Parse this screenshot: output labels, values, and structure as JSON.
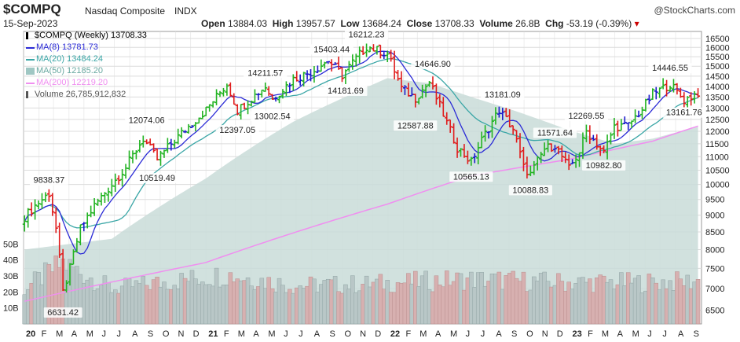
{
  "header": {
    "ticker": "$COMPQ",
    "name": "Nasdaq Composite",
    "exchange": "INDX",
    "date": "15-Sep-2023",
    "brand": "@StockCharts.com",
    "open_label": "Open",
    "open": "13884.03",
    "high_label": "High",
    "high": "13957.57",
    "low_label": "Low",
    "low": "13684.24",
    "close_label": "Close",
    "close": "13708.33",
    "volume_label": "Volume",
    "volume": "26.8B",
    "chg_label": "Chg",
    "chg": "-53.19 (-0.39%)"
  },
  "legend": [
    {
      "text": "$COMPQ (Weekly) 13708.33",
      "color": "#000000",
      "kind": "bar-icon"
    },
    {
      "text": "MA(8) 13781.73",
      "color": "#2b2bd6",
      "kind": "line"
    },
    {
      "text": "MA(20) 13484.24",
      "color": "#3aa6a6",
      "kind": "line"
    },
    {
      "text": "MA(50) 12185.20",
      "color": "#9fc7c3",
      "kind": "area"
    },
    {
      "text": "MA(200) 12219.20",
      "color": "#f08ef0",
      "kind": "line"
    },
    {
      "text": "Volume 26,785,912,832",
      "color": "#555555",
      "kind": "vol-icon"
    }
  ],
  "colors": {
    "up": "#22b322",
    "down": "#e01c1c",
    "neutral": "#1a1acc",
    "ma8": "#2b2bd6",
    "ma20": "#3aa6a6",
    "ma50_area": "#c9dcd8",
    "ma200": "#f08ef0",
    "grid": "#dcdcdc",
    "bg": "#ffffff",
    "upper_bg": "#f2f2f2"
  },
  "chart_data": {
    "type": "line",
    "title": "$COMPQ Nasdaq Composite INDX",
    "subtitle": "Weekly",
    "x_ticks": [
      "20",
      "F",
      "M",
      "A",
      "M",
      "J",
      "J",
      "A",
      "S",
      "O",
      "N",
      "D",
      "21",
      "F",
      "M",
      "A",
      "M",
      "J",
      "J",
      "A",
      "S",
      "O",
      "N",
      "D",
      "22",
      "F",
      "M",
      "A",
      "M",
      "J",
      "J",
      "A",
      "S",
      "O",
      "N",
      "D",
      "23",
      "F",
      "M",
      "A",
      "M",
      "J",
      "J",
      "A",
      "S"
    ],
    "x_tick_bold": [
      "20",
      "21",
      "22",
      "23"
    ],
    "y_ticks": [
      6500,
      7000,
      7500,
      8000,
      8500,
      9000,
      9500,
      10000,
      10500,
      11000,
      11500,
      12000,
      12500,
      13000,
      13500,
      14000,
      14500,
      15000,
      15500,
      16000,
      16500
    ],
    "y_scale": "log",
    "y_range": [
      6200,
      16900
    ],
    "volume_ticks": [
      "10B",
      "20B",
      "30B",
      "40B",
      "50B"
    ],
    "volume_range": [
      0,
      60
    ],
    "grid": true,
    "legend_position": "top-left",
    "annotations": [
      {
        "label": "9838.37",
        "date": "2020-02-21",
        "value": 9838.37
      },
      {
        "label": "6631.42",
        "date": "2020-03-20",
        "value": 6631.42
      },
      {
        "label": "12074.06",
        "date": "2020-09-04",
        "value": 12074.06
      },
      {
        "label": "10519.49",
        "date": "2020-09-25",
        "value": 10519.49
      },
      {
        "label": "14211.57",
        "date": "2021-04-30",
        "value": 14211.57
      },
      {
        "label": "12397.05",
        "date": "2021-03-05",
        "value": 12397.05
      },
      {
        "label": "13002.54",
        "date": "2021-05-14",
        "value": 13002.54
      },
      {
        "label": "15403.44",
        "date": "2021-09-10",
        "value": 15403.44
      },
      {
        "label": "14181.69",
        "date": "2021-10-08",
        "value": 14181.69
      },
      {
        "label": "16212.23",
        "date": "2021-11-19",
        "value": 16212.23
      },
      {
        "label": "12587.88",
        "date": "2022-02-25",
        "value": 12587.88
      },
      {
        "label": "14646.90",
        "date": "2022-04-01",
        "value": 14646.9
      },
      {
        "label": "10565.13",
        "date": "2022-06-17",
        "value": 10565.13
      },
      {
        "label": "13181.09",
        "date": "2022-08-19",
        "value": 13181.09
      },
      {
        "label": "10088.83",
        "date": "2022-10-14",
        "value": 10088.83
      },
      {
        "label": "11571.64",
        "date": "2022-12-02",
        "value": 11571.64
      },
      {
        "label": "12269.55",
        "date": "2023-02-03",
        "value": 12269.55
      },
      {
        "label": "10982.80",
        "date": "2023-03-10",
        "value": 10982.8
      },
      {
        "label": "14446.55",
        "date": "2023-07-21",
        "value": 14446.55
      },
      {
        "label": "13161.76",
        "date": "2023-08-18",
        "value": 13161.76
      }
    ],
    "price_keyframes": [
      [
        "2020-01-03",
        8950
      ],
      [
        "2020-01-24",
        9300
      ],
      [
        "2020-02-21",
        9700
      ],
      [
        "2020-03-06",
        8600
      ],
      [
        "2020-03-20",
        6900
      ],
      [
        "2020-04-03",
        7500
      ],
      [
        "2020-04-24",
        8600
      ],
      [
        "2020-05-22",
        9300
      ],
      [
        "2020-06-26",
        10000
      ],
      [
        "2020-07-24",
        10600
      ],
      [
        "2020-08-28",
        11700
      ],
      [
        "2020-09-25",
        10900
      ],
      [
        "2020-10-23",
        11500
      ],
      [
        "2020-11-27",
        12200
      ],
      [
        "2020-12-31",
        12890
      ],
      [
        "2021-02-12",
        14100
      ],
      [
        "2021-03-05",
        12900
      ],
      [
        "2021-04-30",
        14000
      ],
      [
        "2021-05-14",
        13400
      ],
      [
        "2021-06-25",
        14350
      ],
      [
        "2021-07-30",
        14700
      ],
      [
        "2021-09-03",
        15300
      ],
      [
        "2021-10-01",
        14550
      ],
      [
        "2021-11-19",
        16050
      ],
      [
        "2021-12-31",
        15650
      ],
      [
        "2022-01-28",
        13900
      ],
      [
        "2022-02-25",
        13450
      ],
      [
        "2022-03-25",
        14200
      ],
      [
        "2022-04-29",
        12350
      ],
      [
        "2022-05-20",
        11350
      ],
      [
        "2022-06-17",
        10800
      ],
      [
        "2022-07-08",
        11650
      ],
      [
        "2022-08-12",
        12900
      ],
      [
        "2022-09-09",
        12100
      ],
      [
        "2022-09-30",
        10600
      ],
      [
        "2022-10-14",
        10350
      ],
      [
        "2022-11-11",
        11300
      ],
      [
        "2022-12-02",
        11450
      ],
      [
        "2022-12-30",
        10550
      ],
      [
        "2023-01-20",
        11200
      ],
      [
        "2023-02-03",
        12000
      ],
      [
        "2023-03-10",
        11150
      ],
      [
        "2023-03-31",
        12200
      ],
      [
        "2023-04-28",
        12250
      ],
      [
        "2023-05-26",
        12950
      ],
      [
        "2023-06-16",
        13650
      ],
      [
        "2023-07-21",
        14100
      ],
      [
        "2023-08-18",
        13350
      ],
      [
        "2023-09-15",
        13708.33
      ]
    ],
    "ma50_keyframes": [
      [
        "2020-01-03",
        8000
      ],
      [
        "2020-06-26",
        8300
      ],
      [
        "2020-12-31",
        10200
      ],
      [
        "2021-06-25",
        12400
      ],
      [
        "2021-12-31",
        14400
      ],
      [
        "2022-03-25",
        14150
      ],
      [
        "2022-06-17",
        13500
      ],
      [
        "2022-09-09",
        12900
      ],
      [
        "2022-12-30",
        12050
      ],
      [
        "2023-03-31",
        11500
      ],
      [
        "2023-06-16",
        11700
      ],
      [
        "2023-09-15",
        12185.2
      ]
    ],
    "ma200_keyframes": [
      [
        "2020-01-03",
        6700
      ],
      [
        "2020-12-31",
        7650
      ],
      [
        "2021-12-31",
        9350
      ],
      [
        "2022-06-17",
        10300
      ],
      [
        "2022-12-30",
        10900
      ],
      [
        "2023-06-16",
        11600
      ],
      [
        "2023-09-15",
        12219.2
      ]
    ],
    "volume_keyframes": [
      [
        "2020-01-03",
        22
      ],
      [
        "2020-03-20",
        38
      ],
      [
        "2020-06-26",
        22
      ],
      [
        "2021-02-12",
        31
      ],
      [
        "2021-06-25",
        24
      ],
      [
        "2021-11-19",
        25
      ],
      [
        "2022-06-17",
        28
      ],
      [
        "2022-12-30",
        26
      ],
      [
        "2023-06-16",
        26
      ],
      [
        "2023-09-15",
        26.8
      ]
    ]
  }
}
